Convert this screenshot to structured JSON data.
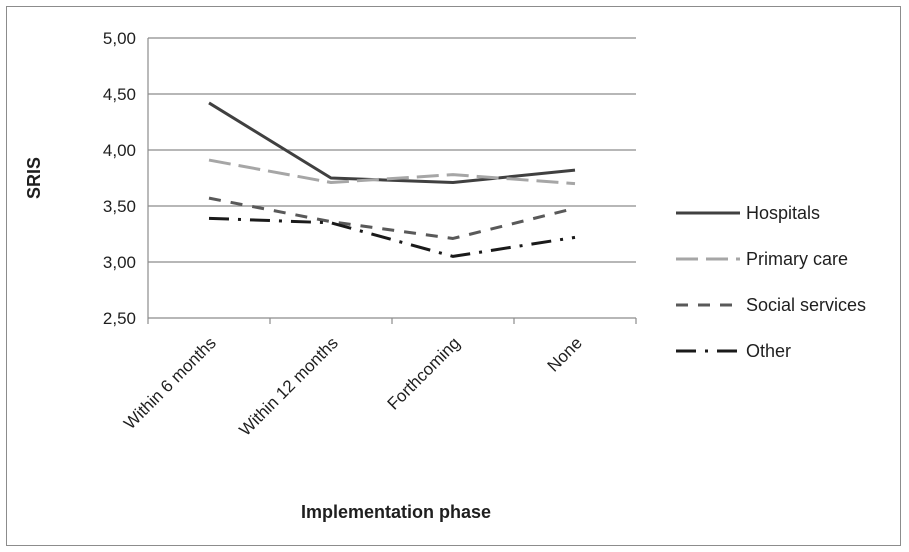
{
  "chart_data": {
    "type": "line",
    "categories": [
      "Within 6 months",
      "Within 12 months",
      "Forthcoming",
      "None"
    ],
    "ylabel": "SRIS",
    "xlabel": "Implementation phase",
    "ylim": [
      2.5,
      5.0
    ],
    "yticks": [
      "2,50",
      "3,00",
      "3,50",
      "4,00",
      "4,50",
      "5,00"
    ],
    "ytick_values": [
      2.5,
      3.0,
      3.5,
      4.0,
      4.5,
      5.0
    ],
    "grid": "horizontal",
    "legend_position": "right",
    "series": [
      {
        "name": "Hospitals",
        "values": [
          4.42,
          3.75,
          3.71,
          3.82
        ],
        "color": "#404040",
        "dash": "solid"
      },
      {
        "name": "Primary care",
        "values": [
          3.91,
          3.71,
          3.78,
          3.7
        ],
        "color": "#a6a6a6",
        "dash": "long-dash"
      },
      {
        "name": "Social services",
        "values": [
          3.57,
          3.36,
          3.21,
          3.48
        ],
        "color": "#595959",
        "dash": "dash"
      },
      {
        "name": "Other",
        "values": [
          3.39,
          3.35,
          3.05,
          3.22
        ],
        "color": "#1a1a1a",
        "dash": "long-dash-dot"
      }
    ]
  }
}
